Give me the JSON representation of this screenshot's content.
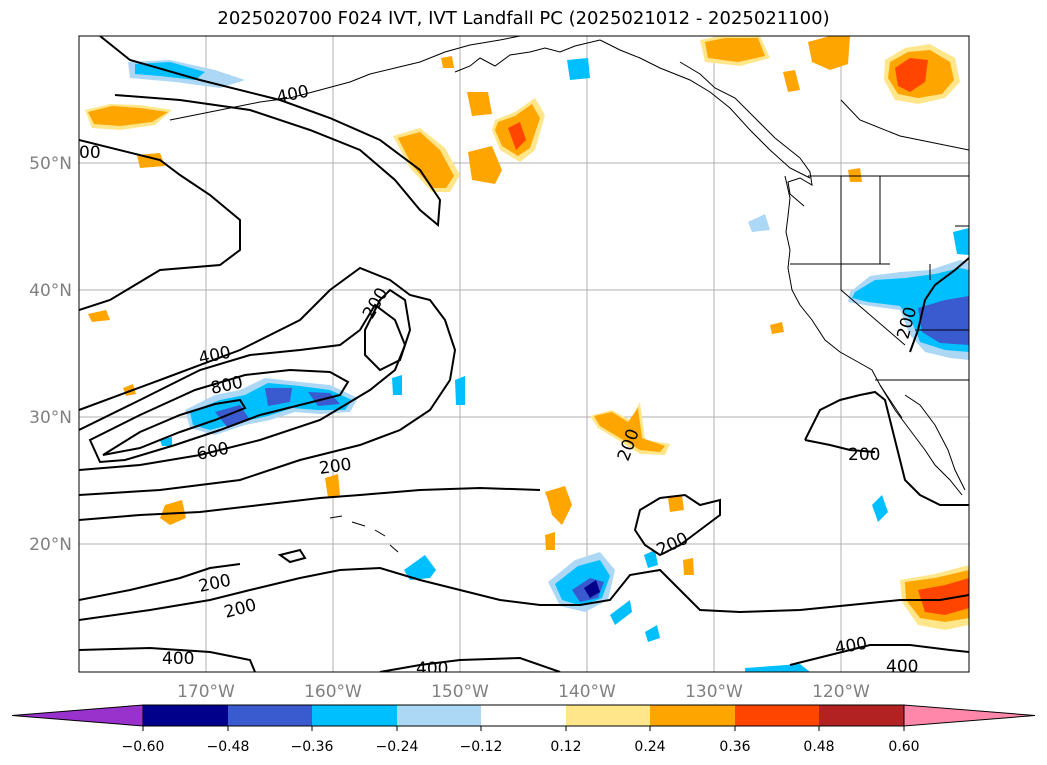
{
  "title": "2025020700 F024 IVT, IVT Landfall PC (2025021012 - 2025021100)",
  "lat_labels": [
    "50°N",
    "40°N",
    "30°N",
    "20°N"
  ],
  "lon_labels": [
    "170°W",
    "160°W",
    "150°W",
    "140°W",
    "130°W",
    "120°W"
  ],
  "contour_labels": [
    "400",
    "00",
    "200",
    "400",
    "800",
    "600",
    "200",
    "200",
    "200",
    "200",
    "200",
    "200",
    "200",
    "400",
    "400",
    "400",
    "400"
  ],
  "colorbar": {
    "ticks": [
      "−0.60",
      "−0.48",
      "−0.36",
      "−0.24",
      "−0.12",
      "0.12",
      "0.24",
      "0.36",
      "0.48",
      "0.60"
    ],
    "colors": {
      "under": "#9932cc",
      "bins": [
        "#00008b",
        "#3a5bcf",
        "#00bfff",
        "#add8f5",
        "#ffffff",
        "#ffe68a",
        "#ffa500",
        "#ff4500",
        "#b22222"
      ],
      "over": "#ff88aa"
    }
  },
  "shading_colors": {
    "neg_light": "#add8f5",
    "neg_mid": "#00bfff",
    "neg_strong": "#3a5bcf",
    "neg_max": "#00008b",
    "pos_light": "#ffe68a",
    "pos_mid": "#ffa500",
    "pos_strong": "#ff4500"
  }
}
